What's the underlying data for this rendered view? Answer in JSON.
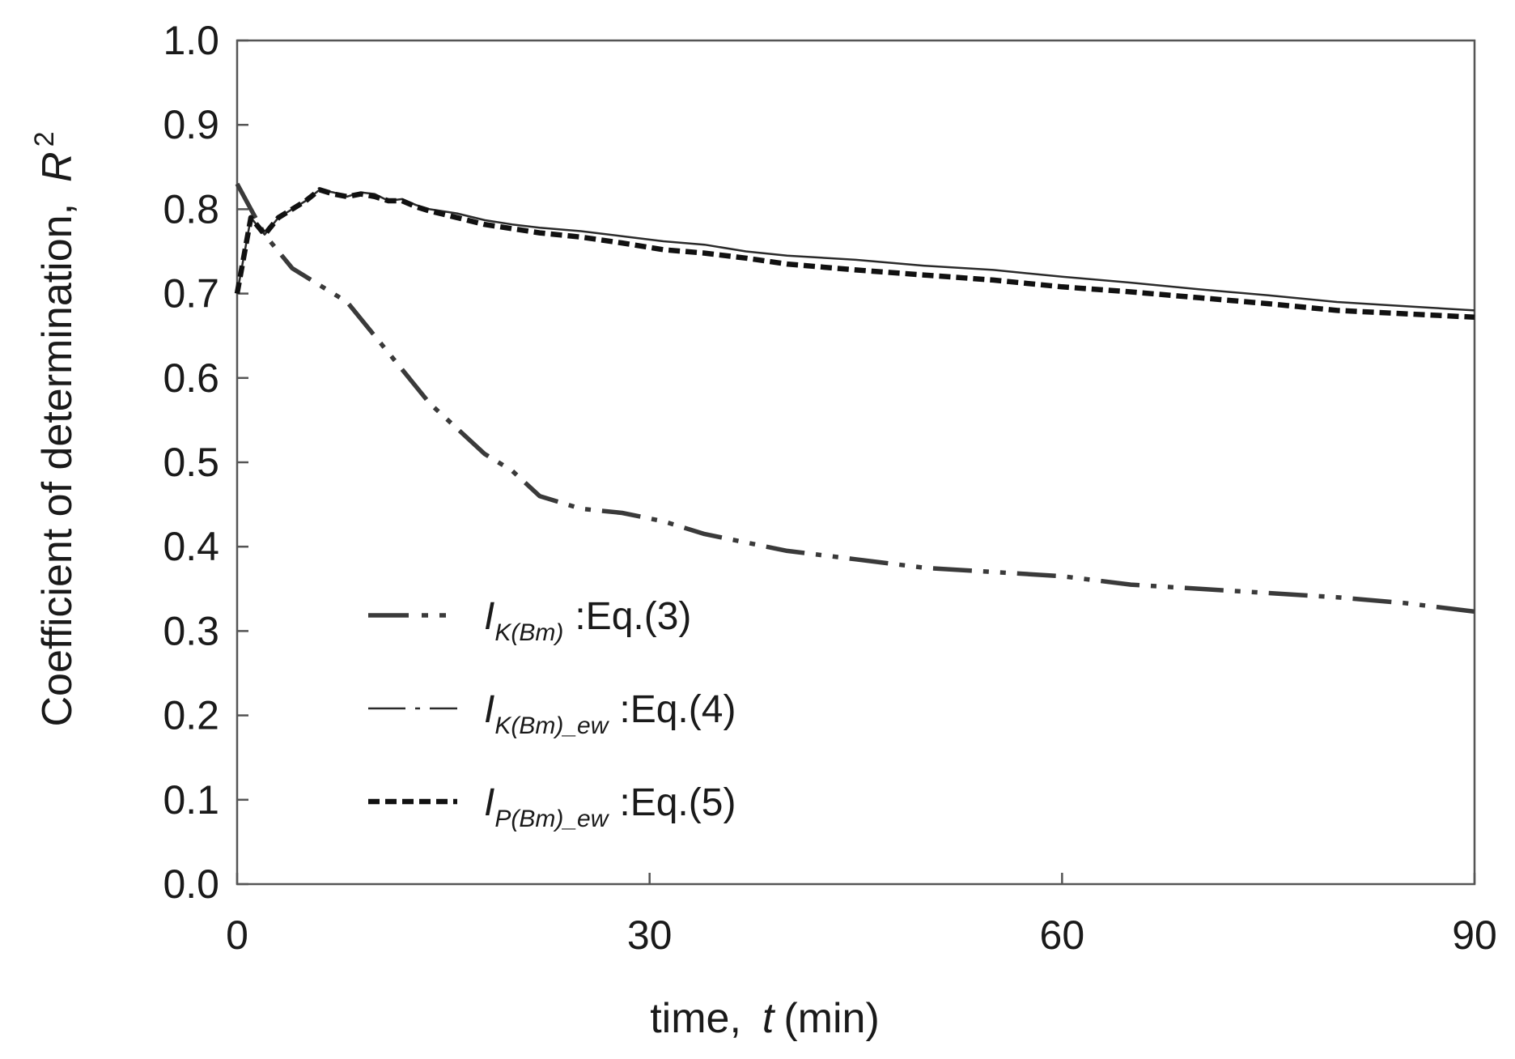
{
  "chart_data": {
    "type": "line",
    "title": "",
    "xlabel": {
      "prefix": "time,",
      "symbol": "t",
      "unit": "(min)"
    },
    "ylabel": {
      "prefix": "Coefficient of determination,",
      "symbol": "R",
      "sup": "2"
    },
    "xlim": [
      0,
      90
    ],
    "ylim": [
      0,
      1
    ],
    "xticks": [
      0,
      30,
      60,
      90
    ],
    "xtick_labels": [
      "0",
      "30",
      "60",
      "90"
    ],
    "yticks": [
      0,
      0.1,
      0.2,
      0.3,
      0.4,
      0.5,
      0.6,
      0.7,
      0.8,
      0.9,
      1.0
    ],
    "ytick_labels": [
      "0.0",
      "0.1",
      "0.2",
      "0.3",
      "0.4",
      "0.5",
      "0.6",
      "0.7",
      "0.8",
      "0.9",
      "1.0"
    ],
    "grid": false,
    "legend_position": "bottom-left inside",
    "series": [
      {
        "name": "I_K(Bm) :Eq.(3)",
        "legend": {
          "base": "I",
          "sub": "K(Bm)",
          "eq": ":Eq.(3)"
        },
        "style": "long-dash-dot-dot",
        "color": "#3a3a3a",
        "x": [
          0,
          2,
          4,
          6,
          8,
          10,
          12,
          14,
          16,
          18,
          20,
          22,
          25,
          28,
          31,
          34,
          37,
          40,
          45,
          50,
          55,
          60,
          65,
          70,
          75,
          80,
          85,
          90
        ],
        "y": [
          0.83,
          0.77,
          0.73,
          0.71,
          0.69,
          0.65,
          0.61,
          0.57,
          0.54,
          0.51,
          0.49,
          0.46,
          0.445,
          0.44,
          0.43,
          0.415,
          0.405,
          0.395,
          0.385,
          0.375,
          0.37,
          0.365,
          0.355,
          0.35,
          0.345,
          0.34,
          0.333,
          0.323
        ]
      },
      {
        "name": "I_K(Bm)_ew :Eq.(4)",
        "legend": {
          "base": "I",
          "sub": "K(Bm)_ew",
          "eq": ":Eq.(4)"
        },
        "style": "thin-solid",
        "color": "#2a2a2a",
        "x": [
          0,
          1,
          2,
          3,
          4,
          5,
          6,
          7,
          8,
          9,
          10,
          11,
          12,
          13,
          14,
          16,
          18,
          20,
          22,
          25,
          28,
          31,
          34,
          37,
          40,
          45,
          50,
          55,
          60,
          65,
          70,
          75,
          80,
          85,
          90
        ],
        "y": [
          0.7,
          0.79,
          0.77,
          0.79,
          0.8,
          0.81,
          0.823,
          0.82,
          0.815,
          0.82,
          0.818,
          0.81,
          0.812,
          0.805,
          0.8,
          0.795,
          0.787,
          0.782,
          0.778,
          0.774,
          0.768,
          0.762,
          0.758,
          0.75,
          0.745,
          0.74,
          0.733,
          0.728,
          0.72,
          0.713,
          0.705,
          0.698,
          0.69,
          0.685,
          0.68
        ]
      },
      {
        "name": "I_P(Bm)_ew :Eq.(5)",
        "legend": {
          "base": "I",
          "sub": "P(Bm)_ew",
          "eq": ":Eq.(5)"
        },
        "style": "short-dash-bold",
        "color": "#111111",
        "x": [
          0,
          1,
          2,
          3,
          4,
          5,
          6,
          7,
          8,
          9,
          10,
          11,
          12,
          13,
          14,
          16,
          18,
          20,
          22,
          25,
          28,
          31,
          34,
          37,
          40,
          45,
          50,
          55,
          60,
          65,
          70,
          75,
          80,
          85,
          90
        ],
        "y": [
          0.7,
          0.79,
          0.77,
          0.79,
          0.8,
          0.81,
          0.823,
          0.818,
          0.815,
          0.818,
          0.815,
          0.81,
          0.81,
          0.803,
          0.798,
          0.79,
          0.782,
          0.777,
          0.772,
          0.767,
          0.76,
          0.752,
          0.748,
          0.742,
          0.735,
          0.728,
          0.722,
          0.716,
          0.708,
          0.702,
          0.695,
          0.688,
          0.68,
          0.676,
          0.672
        ]
      }
    ]
  }
}
